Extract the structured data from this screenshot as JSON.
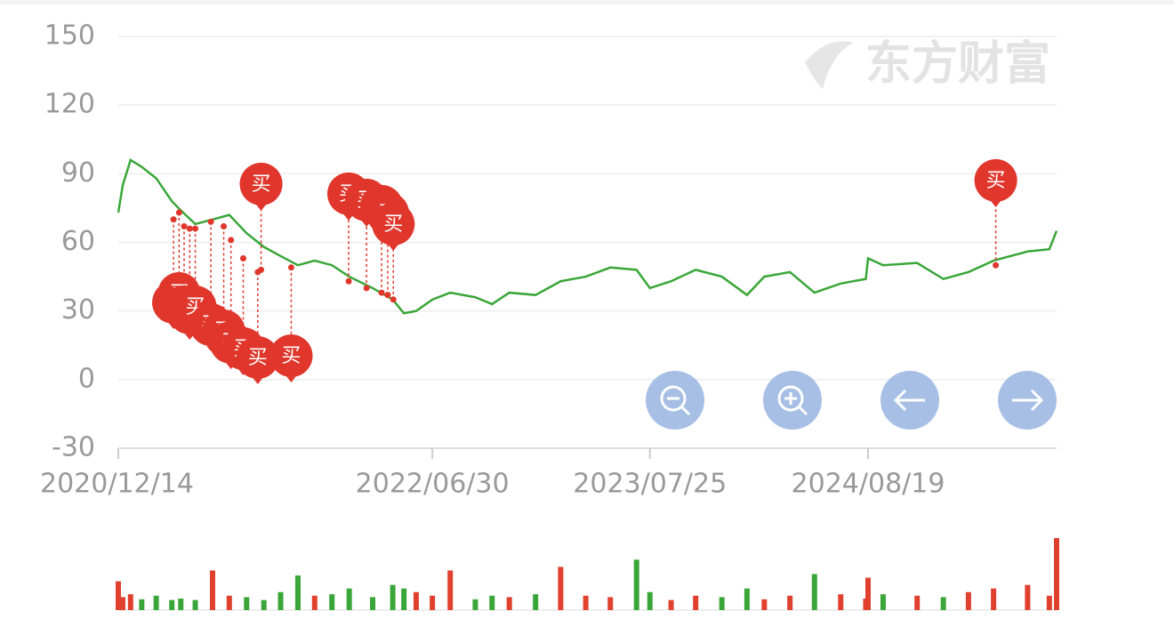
{
  "chart_data": {
    "type": "line",
    "watermark": "东方财富",
    "x": [
      "2020/12/14",
      "2020/12/22",
      "2021/01/05",
      "2021/01/25",
      "2021/02/20",
      "2021/03/20",
      "2021/04/05",
      "2021/05/01",
      "2021/06/01",
      "2021/07/01",
      "2021/08/01",
      "2021/09/01",
      "2021/10/01",
      "2021/11/01",
      "2021/12/01",
      "2022/01/01",
      "2022/02/01",
      "2022/03/15",
      "2022/04/20",
      "2022/05/10",
      "2022/06/01",
      "2022/06/30",
      "2022/08/01",
      "2022/09/15",
      "2022/10/15",
      "2022/11/15",
      "2023/01/01",
      "2023/02/15",
      "2023/04/01",
      "2023/05/15",
      "2023/07/01",
      "2023/07/25",
      "2023/09/01",
      "2023/10/15",
      "2023/12/01",
      "2024/01/15",
      "2024/02/15",
      "2024/04/01",
      "2024/05/15",
      "2024/07/01",
      "2024/08/15",
      "2024/08/19",
      "2024/09/15",
      "2024/11/15",
      "2025/01/01",
      "2025/02/15",
      "2025/04/01",
      "2025/06/01",
      "2025/07/10",
      "2025/07/23"
    ],
    "values": [
      73,
      85,
      96,
      93,
      88,
      78,
      74,
      68,
      70,
      72,
      64,
      58,
      54,
      50,
      52,
      50,
      45,
      40,
      35,
      29,
      30,
      35,
      38,
      36,
      33,
      38,
      37,
      43,
      45,
      49,
      48,
      40,
      43,
      48,
      45,
      37,
      45,
      47,
      38,
      42,
      44,
      53,
      50,
      51,
      44,
      47,
      52,
      56,
      57,
      65
    ],
    "color": "#3aa639",
    "up_color": "#e0412f",
    "down_color": "#3aa639",
    "xlim": [
      "2020/12/14",
      "2025/07/23"
    ],
    "xticks": [
      "2020/12/14",
      "2022/06/30",
      "2023/07/25",
      "2024/08/19"
    ],
    "ylim": [
      -30,
      150
    ],
    "yticks": [
      -30,
      0,
      30,
      60,
      90,
      120,
      150
    ],
    "grid": true,
    "markers": [
      {
        "x": "2021/03/23",
        "value": 70,
        "label": "买"
      },
      {
        "x": "2021/04/02",
        "value": 73,
        "label": "买"
      },
      {
        "x": "2021/04/11",
        "value": 67,
        "label": "买"
      },
      {
        "x": "2021/04/21",
        "value": 66,
        "label": "买"
      },
      {
        "x": "2021/05/01",
        "value": 66,
        "label": "买"
      },
      {
        "x": "2021/05/29",
        "value": 69,
        "label": "买"
      },
      {
        "x": "2021/06/21",
        "value": 67,
        "label": "买"
      },
      {
        "x": "2021/07/04",
        "value": 61,
        "label": "买"
      },
      {
        "x": "2021/07/26",
        "value": 53,
        "label": "买"
      },
      {
        "x": "2021/08/21",
        "value": 47,
        "label": "买"
      },
      {
        "x": "2021/08/27",
        "value": 48,
        "label": "买"
      },
      {
        "x": "2021/10/20",
        "value": 49,
        "label": "买"
      },
      {
        "x": "2022/01/31",
        "value": 43,
        "label": "买"
      },
      {
        "x": "2022/03/04",
        "value": 40,
        "label": "买"
      },
      {
        "x": "2022/03/31",
        "value": 38,
        "label": "买"
      },
      {
        "x": "2022/04/11",
        "value": 37,
        "label": "买"
      },
      {
        "x": "2022/04/21",
        "value": 35,
        "label": "买"
      },
      {
        "x": "2025/04/05",
        "value": 50,
        "label": "买"
      }
    ],
    "marker_color": "#e0362c",
    "volume": {
      "values": [
        40,
        18,
        22,
        15,
        20,
        14,
        16,
        14,
        55,
        20,
        18,
        14,
        25,
        48,
        20,
        22,
        30,
        18,
        35,
        30,
        25,
        20,
        55,
        15,
        20,
        18,
        22,
        60,
        20,
        18,
        70,
        25,
        14,
        20,
        18,
        30,
        15,
        20,
        50,
        22,
        16,
        45,
        22,
        20,
        18,
        25,
        30,
        35,
        20,
        100
      ],
      "ylim": [
        0,
        100
      ]
    }
  }
}
